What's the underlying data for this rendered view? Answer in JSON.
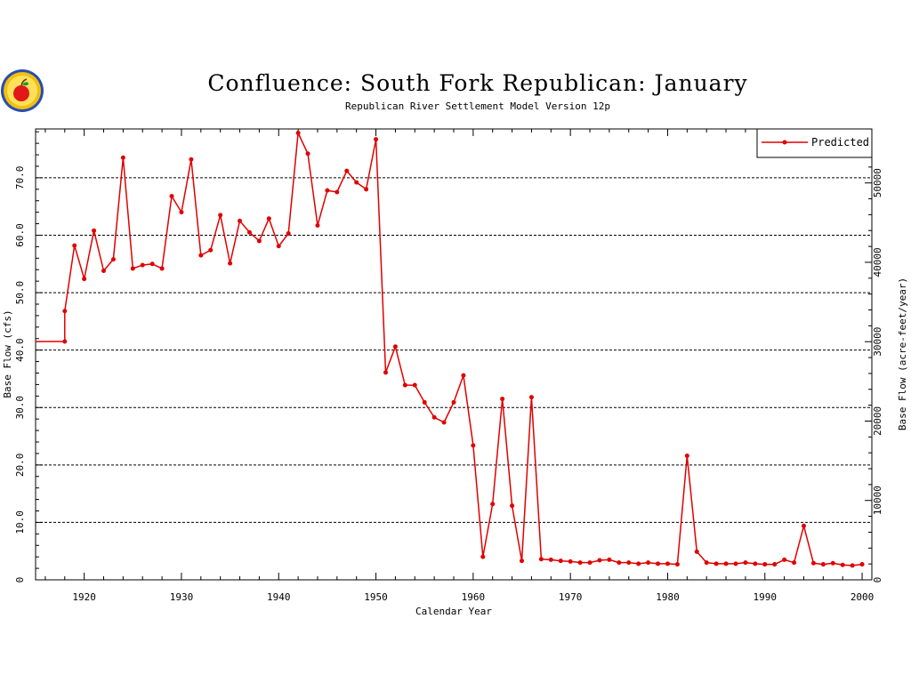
{
  "chart_data": {
    "type": "line",
    "title": "Confluence: South Fork Republican: January",
    "subtitle": "Republican River Settlement Model Version 12p",
    "xlabel": "Calendar Year",
    "ylabel": "Base Flow (cfs)",
    "y2label": "Base Flow (acre-feet/year)",
    "xlim": [
      1915,
      2001
    ],
    "ylim": [
      0,
      78.5
    ],
    "y2lim": [
      0,
      56800
    ],
    "x_ticks": [
      1920,
      1930,
      1940,
      1950,
      1960,
      1970,
      1980,
      1990,
      2000
    ],
    "y_ticks": [
      0,
      10,
      20,
      30,
      40,
      50,
      60,
      70
    ],
    "y_tick_labels": [
      "0",
      "10.0",
      "20.0",
      "30.0",
      "40.0",
      "50.0",
      "60.0",
      "70.0"
    ],
    "y2_ticks": [
      0,
      10000,
      20000,
      30000,
      40000,
      50000
    ],
    "y2_tick_labels": [
      "0",
      "10000",
      "20000",
      "30000",
      "40000",
      "50000"
    ],
    "grid": "horizontal dashed",
    "legend_position": "top-right",
    "colors": {
      "series": "#e00000"
    },
    "series": [
      {
        "name": "Predicted",
        "x": [
          1915,
          1918,
          1918,
          1919,
          1920,
          1921,
          1922,
          1923,
          1924,
          1925,
          1926,
          1927,
          1928,
          1929,
          1930,
          1931,
          1932,
          1933,
          1934,
          1935,
          1936,
          1937,
          1938,
          1939,
          1940,
          1941,
          1942,
          1943,
          1944,
          1945,
          1946,
          1947,
          1948,
          1949,
          1950,
          1951,
          1952,
          1953,
          1954,
          1955,
          1956,
          1957,
          1958,
          1959,
          1960,
          1961,
          1962,
          1963,
          1964,
          1965,
          1966,
          1967,
          1968,
          1969,
          1970,
          1971,
          1972,
          1973,
          1974,
          1975,
          1976,
          1977,
          1978,
          1979,
          1980,
          1981,
          1982,
          1983,
          1984,
          1985,
          1986,
          1987,
          1988,
          1989,
          1990,
          1991,
          1992,
          1993,
          1994,
          1995,
          1996,
          1997,
          1998,
          1999,
          2000
        ],
        "values": [
          41.5,
          41.5,
          46.8,
          58.2,
          52.4,
          60.8,
          53.8,
          55.8,
          73.5,
          54.2,
          54.8,
          55.0,
          54.2,
          66.8,
          64.0,
          73.2,
          56.5,
          57.4,
          63.5,
          55.1,
          62.5,
          60.5,
          59.0,
          62.9,
          58.1,
          60.3,
          77.8,
          74.2,
          61.7,
          67.8,
          67.5,
          71.2,
          69.2,
          68.0,
          76.7,
          36.1,
          40.6,
          33.9,
          33.9,
          30.9,
          28.3,
          27.4,
          30.9,
          35.6,
          23.4,
          4.0,
          13.2,
          31.5,
          12.9,
          3.3,
          31.8,
          3.6,
          3.5,
          3.3,
          3.2,
          3.0,
          3.0,
          3.4,
          3.5,
          3.0,
          3.0,
          2.8,
          3.0,
          2.8,
          2.8,
          2.7,
          21.6,
          4.9,
          3.0,
          2.8,
          2.8,
          2.8,
          3.0,
          2.8,
          2.7,
          2.7,
          3.5,
          3.0,
          9.4,
          2.9,
          2.7,
          2.9,
          2.6,
          2.5,
          2.7
        ]
      }
    ]
  }
}
